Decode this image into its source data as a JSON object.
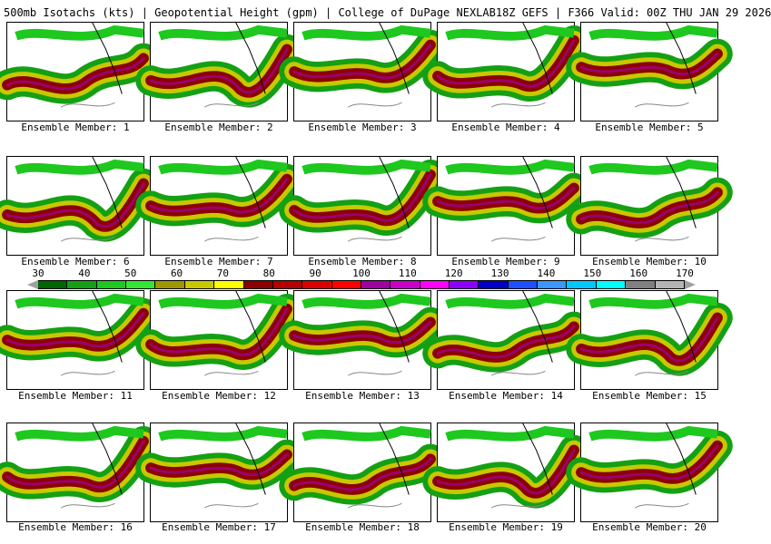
{
  "header": {
    "left": "500mb Isotachs (kts) | Geopotential Height (gpm) | College of DuPage NEXLAB",
    "right": "18Z GEFS | F366 Valid: 00Z THU JAN 29 2026"
  },
  "colorbar": {
    "ticks": [
      "30",
      "40",
      "50",
      "60",
      "70",
      "80",
      "90",
      "100",
      "110",
      "120",
      "130",
      "140",
      "150",
      "160",
      "170"
    ],
    "colors": [
      "#006400",
      "#14a014",
      "#1ec81e",
      "#32e632",
      "#a09600",
      "#c8c800",
      "#ffff00",
      "#8c0000",
      "#b40000",
      "#dc0000",
      "#ff0000",
      "#a000a0",
      "#c800c8",
      "#ff00ff",
      "#8c00ff",
      "#0000c8",
      "#1e50ff",
      "#3c96ff",
      "#00c8ff",
      "#00ffff",
      "#808080",
      "#b4b4b4"
    ]
  },
  "panels": [
    {
      "label": "Ensemble Member: 1"
    },
    {
      "label": "Ensemble Member: 2"
    },
    {
      "label": "Ensemble Member: 3"
    },
    {
      "label": "Ensemble Member: 4"
    },
    {
      "label": "Ensemble Member: 5"
    },
    {
      "label": "Ensemble Member: 6"
    },
    {
      "label": "Ensemble Member: 7"
    },
    {
      "label": "Ensemble Member: 8"
    },
    {
      "label": "Ensemble Member: 9"
    },
    {
      "label": "Ensemble Member: 10"
    },
    {
      "label": "Ensemble Member: 11"
    },
    {
      "label": "Ensemble Member: 12"
    },
    {
      "label": "Ensemble Member: 13"
    },
    {
      "label": "Ensemble Member: 14"
    },
    {
      "label": "Ensemble Member: 15"
    },
    {
      "label": "Ensemble Member: 16"
    },
    {
      "label": "Ensemble Member: 17"
    },
    {
      "label": "Ensemble Member: 18"
    },
    {
      "label": "Ensemble Member: 19"
    },
    {
      "label": "Ensemble Member: 20"
    }
  ]
}
